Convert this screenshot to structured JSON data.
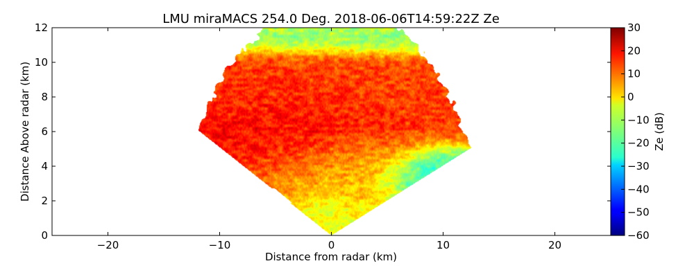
{
  "chart_data": {
    "type": "heatmap",
    "title": "LMU miraMACS 254.0 Deg. 2018-06-06T14:59:22Z  Ze",
    "xlabel": "Distance from radar (km)",
    "ylabel": "Distance Above radar  (km)",
    "colorbar_label": "Ze (dB)",
    "xlim": [
      -25,
      25
    ],
    "ylim": [
      0,
      12
    ],
    "x_ticks": [
      -20,
      -10,
      0,
      10,
      20
    ],
    "y_ticks": [
      0,
      2,
      4,
      6,
      8,
      10,
      12
    ],
    "colorbar_range": [
      -60,
      30
    ],
    "colorbar_ticks": [
      -60,
      -50,
      -40,
      -30,
      -20,
      -10,
      0,
      10,
      20,
      30
    ],
    "colormap": "jet",
    "scan": {
      "origin_km": [
        0,
        0
      ],
      "max_range_km": 13.6,
      "elevation_start_deg": 22,
      "elevation_end_deg": 153
    },
    "reflectivity_regions": [
      {
        "name": "cloud core",
        "center_km": [
          -3,
          6.5
        ],
        "radius_km": [
          7,
          2.4
        ],
        "ze_db": 19
      },
      {
        "name": "upper layer",
        "center_km": [
          -1,
          8.5
        ],
        "radius_km": [
          8,
          2.5
        ],
        "ze_db": 12
      },
      {
        "name": "cloud top",
        "center_km": [
          -1,
          11.3
        ],
        "radius_km": [
          9,
          0.7
        ],
        "ze_db": -18
      },
      {
        "name": "lower cloud",
        "center_km": [
          2,
          3.8
        ],
        "radius_km": [
          6,
          1.5
        ],
        "ze_db": 2
      },
      {
        "name": "right edge",
        "center_km": [
          9,
          3.4
        ],
        "radius_km": [
          3.5,
          1
        ],
        "ze_db": -28
      },
      {
        "name": "left low layer",
        "center_km": [
          -10,
          1.2
        ],
        "radius_km": [
          3,
          1
        ],
        "ze_db": 11
      },
      {
        "name": "near radar cone",
        "center_km": [
          0,
          1
        ],
        "radius_km": [
          2.5,
          1.5
        ],
        "ze_db": -5
      }
    ]
  }
}
